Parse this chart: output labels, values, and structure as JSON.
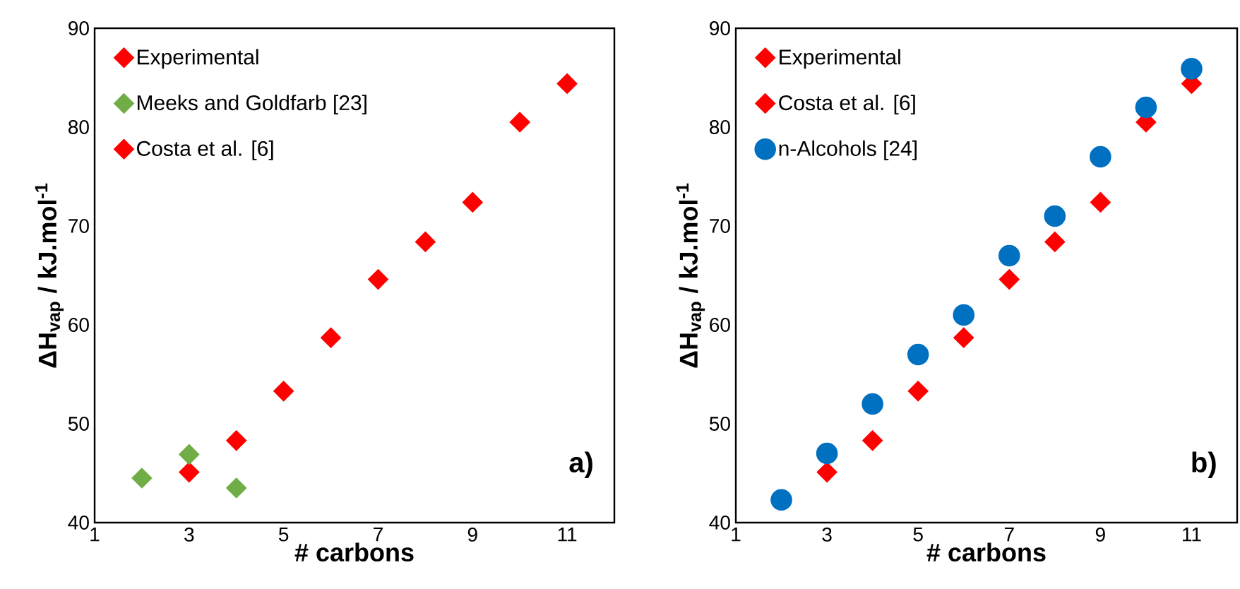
{
  "chart_data": [
    {
      "type": "scatter",
      "xlabel": "# carbons",
      "ylabel": "ΔH$_{vap}$ / kJ.mol$^{-1}$",
      "xlim": [
        1,
        12
      ],
      "ylim": [
        40,
        90
      ],
      "xticks": [
        1,
        3,
        5,
        7,
        9,
        11
      ],
      "yticks": [
        40,
        50,
        60,
        70,
        80,
        90
      ],
      "grid": false,
      "legend": "top left",
      "annotations": [
        "a)"
      ],
      "series": [
        {
          "name": "Experimental",
          "color": "#ff0000",
          "marker": "diamond",
          "x": [
            3,
            4,
            5,
            6
          ],
          "values": [
            45.1,
            48.3,
            53.3,
            58.7
          ]
        },
        {
          "name": "Meeks and Goldfarb [23]",
          "color": "#70ad47",
          "marker": "diamond",
          "x": [
            2,
            3,
            4
          ],
          "values": [
            44.5,
            46.9,
            43.5
          ]
        },
        {
          "name": "Costa et al. [6]",
          "color": "#ff0000",
          "marker": "diamond",
          "x": [
            7,
            8,
            9,
            10,
            11
          ],
          "values": [
            64.6,
            68.4,
            72.4,
            80.5,
            84.4
          ]
        }
      ]
    },
    {
      "type": "scatter",
      "xlabel": "# carbons",
      "ylabel": "ΔH$_{vap}$ / kJ.mol$^{-1}$",
      "xlim": [
        1,
        12
      ],
      "ylim": [
        40,
        90
      ],
      "xticks": [
        1,
        3,
        5,
        7,
        9,
        11
      ],
      "yticks": [
        40,
        50,
        60,
        70,
        80,
        90
      ],
      "grid": false,
      "legend": "top left",
      "annotations": [
        "b)"
      ],
      "series": [
        {
          "name": "Experimental",
          "color": "#ff0000",
          "marker": "diamond",
          "x": [
            3,
            4,
            5,
            6
          ],
          "values": [
            45.1,
            48.3,
            53.3,
            58.7
          ]
        },
        {
          "name": "Costa et al. [6]",
          "color": "#ff0000",
          "marker": "diamond",
          "x": [
            7,
            8,
            9,
            10,
            11
          ],
          "values": [
            64.6,
            68.4,
            72.4,
            80.5,
            84.4
          ]
        },
        {
          "name": "n-Alcohols [24]",
          "color": "#0070c0",
          "marker": "circle",
          "x": [
            2,
            3,
            4,
            5,
            6,
            7,
            8,
            9,
            10,
            11
          ],
          "values": [
            42.3,
            47,
            52,
            57,
            61,
            67,
            71,
            77,
            82,
            85.9
          ]
        }
      ]
    }
  ]
}
